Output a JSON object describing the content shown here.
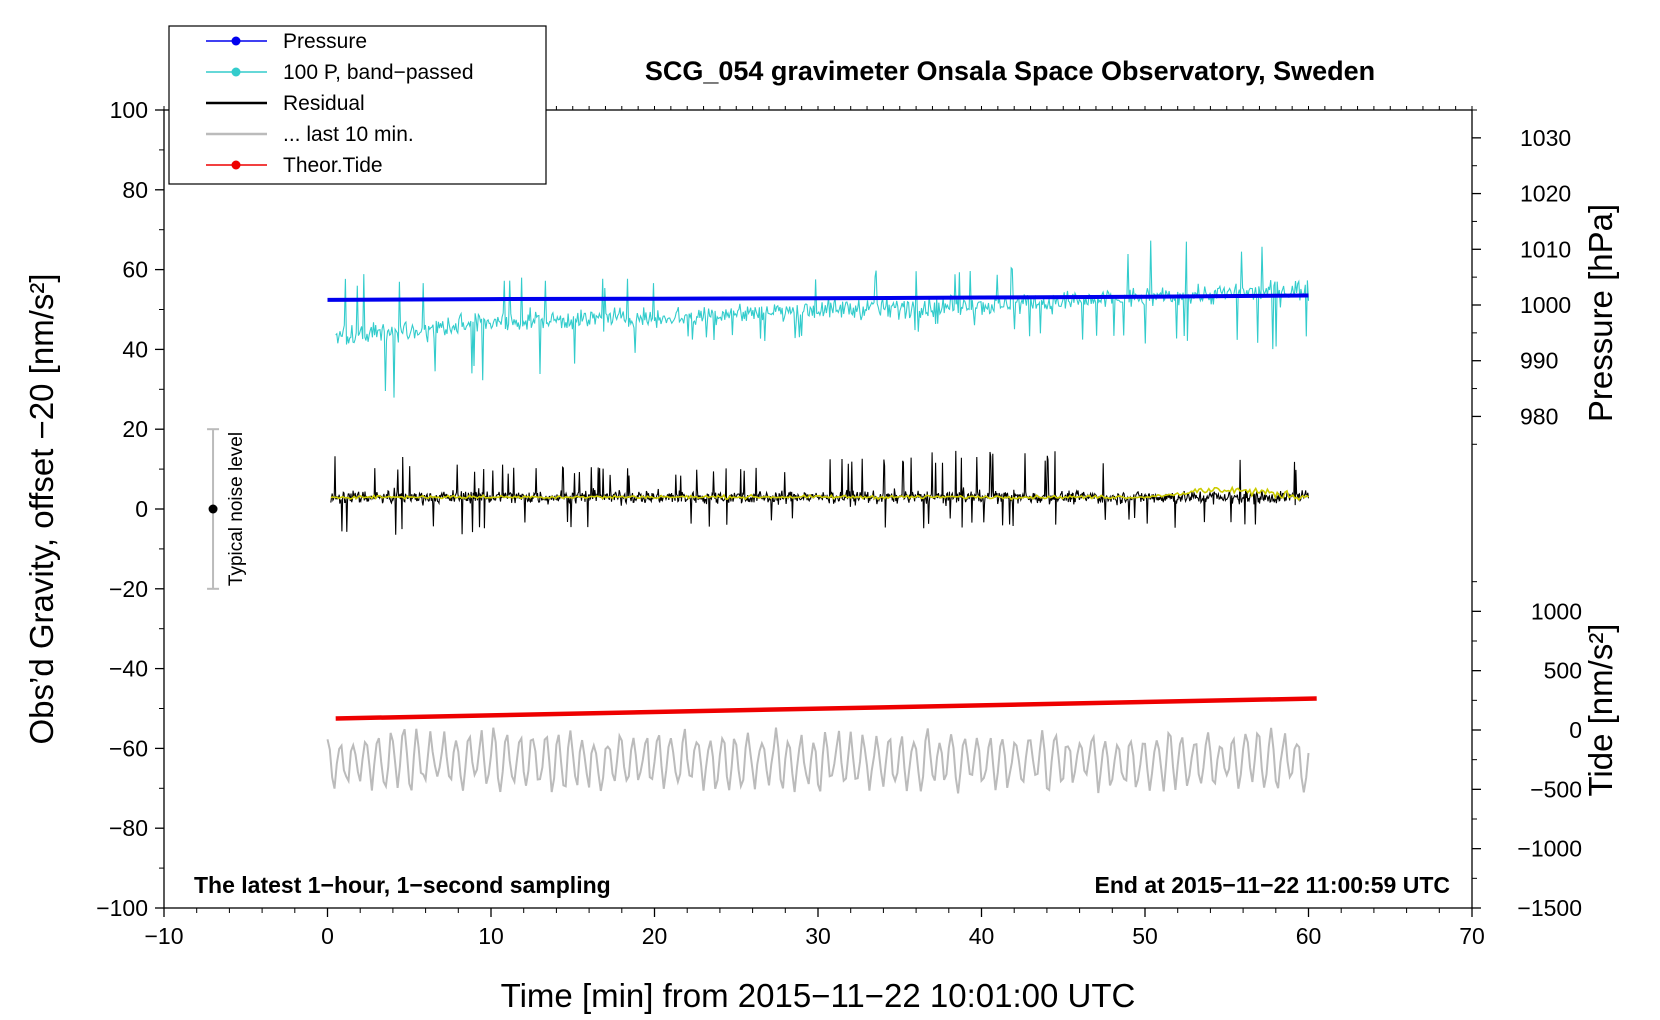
{
  "chart_data": {
    "type": "line",
    "title": "SCG_054 gravimeter Onsala Space Observatory, Sweden",
    "xlabel": "Time [min] from 2015−11−22 10:01:00 UTC",
    "ylabel_left": "Obs’d Gravity, offset −20 [nm/s²]",
    "ylabel_pressure": "Pressure [hPa]",
    "ylabel_tide": "Tide [nm/s²]",
    "xlim": [
      -10,
      70
    ],
    "ylim": [
      -100,
      100
    ],
    "pressure_lim": [
      965,
      1035
    ],
    "tide_lim": [
      -1500,
      1500
    ],
    "x_ticks": [
      -10,
      0,
      10,
      20,
      30,
      40,
      50,
      60,
      70
    ],
    "x_tick_labels": [
      "−10",
      "0",
      "10",
      "20",
      "30",
      "40",
      "50",
      "60",
      "70"
    ],
    "y_ticks": [
      -100,
      -80,
      -60,
      -40,
      -20,
      0,
      20,
      40,
      60,
      80,
      100
    ],
    "y_tick_labels": [
      "−100",
      "−80",
      "−60",
      "−40",
      "−20",
      "0",
      "20",
      "40",
      "60",
      "80",
      "100"
    ],
    "pressure_ticks": [
      980,
      990,
      1000,
      1010,
      1020,
      1030
    ],
    "pressure_tick_labels": [
      "980",
      "990",
      "1000",
      "1010",
      "1020",
      "1030"
    ],
    "tide_ticks": [
      -1500,
      -1000,
      -500,
      0,
      500,
      1000
    ],
    "tide_tick_labels": [
      "−1500",
      "−1000",
      "−500",
      "0",
      "500",
      "1000"
    ],
    "legend": [
      {
        "label": "Pressure",
        "color": "#0000ee",
        "marker": true
      },
      {
        "label": "100 P, band−passed",
        "color": "#33cccc",
        "marker": true
      },
      {
        "label": "Residual",
        "color": "#000000",
        "marker": false
      },
      {
        "label": "... last 10 min.",
        "color": "#bbbbbb",
        "marker": false
      },
      {
        "label": "Theor.Tide",
        "color": "#ee0000",
        "marker": true
      }
    ],
    "series": [
      {
        "name": "Pressure",
        "color": "#0000ee",
        "x": [
          0,
          10,
          20,
          30,
          40,
          50,
          60
        ],
        "values": [
          52.4,
          52.6,
          52.7,
          52.8,
          53.0,
          53.2,
          53.5
        ],
        "unit": "nm/s² (left axis)"
      },
      {
        "name": "100 P, band−passed",
        "color": "#33cccc",
        "x": [
          0,
          10,
          20,
          30,
          40,
          50,
          60
        ],
        "values": [
          43,
          47,
          48,
          50,
          51,
          53,
          55
        ],
        "envelope": [
          [
            24,
            61
          ],
          [
            31,
            62
          ],
          [
            40,
            58
          ],
          [
            43,
            60
          ],
          [
            45,
            60
          ],
          [
            38,
            69
          ],
          [
            38,
            69
          ]
        ]
      },
      {
        "name": "Residual",
        "color": "#000000",
        "x": [
          0,
          10,
          20,
          30,
          40,
          50,
          60
        ],
        "values": [
          3,
          3,
          3,
          3,
          3,
          3,
          3
        ],
        "envelope": [
          [
            -7,
            14
          ],
          [
            -7,
            12
          ],
          [
            -5,
            10
          ],
          [
            -5,
            13
          ],
          [
            -5,
            15
          ],
          [
            -5,
            15
          ],
          [
            -5,
            13
          ]
        ]
      },
      {
        "name": "Residual smoothed",
        "color": "#cccc00",
        "x": [
          0,
          10,
          20,
          30,
          40,
          50,
          55,
          60
        ],
        "values": [
          3,
          3,
          3,
          3,
          3,
          3,
          5,
          3
        ]
      },
      {
        "name": "... last 10 min.",
        "color": "#bbbbbb",
        "x": [
          0,
          10,
          20,
          30,
          40,
          50,
          60
        ],
        "values": [
          -63,
          -63,
          -63,
          -63,
          -63,
          -63,
          -63
        ],
        "envelope": [
          [
            -70,
            -52
          ],
          [
            -72,
            -52
          ],
          [
            -70,
            -54
          ],
          [
            -72,
            -52
          ],
          [
            -72,
            -54
          ],
          [
            -72,
            -52
          ],
          [
            -72,
            -52
          ]
        ]
      },
      {
        "name": "Theor.Tide",
        "color": "#ee0000",
        "x": [
          0.5,
          60.5
        ],
        "values": [
          -52.5,
          -47.5
        ]
      }
    ],
    "noise_bar": {
      "x": -7,
      "center": 0,
      "range": [
        -20,
        20
      ],
      "label": "Typical noise level"
    },
    "annotations": {
      "bottom_left": "The latest 1−hour, 1−second sampling",
      "bottom_right": "End at 2015−11−22 11:00:59 UTC"
    }
  }
}
